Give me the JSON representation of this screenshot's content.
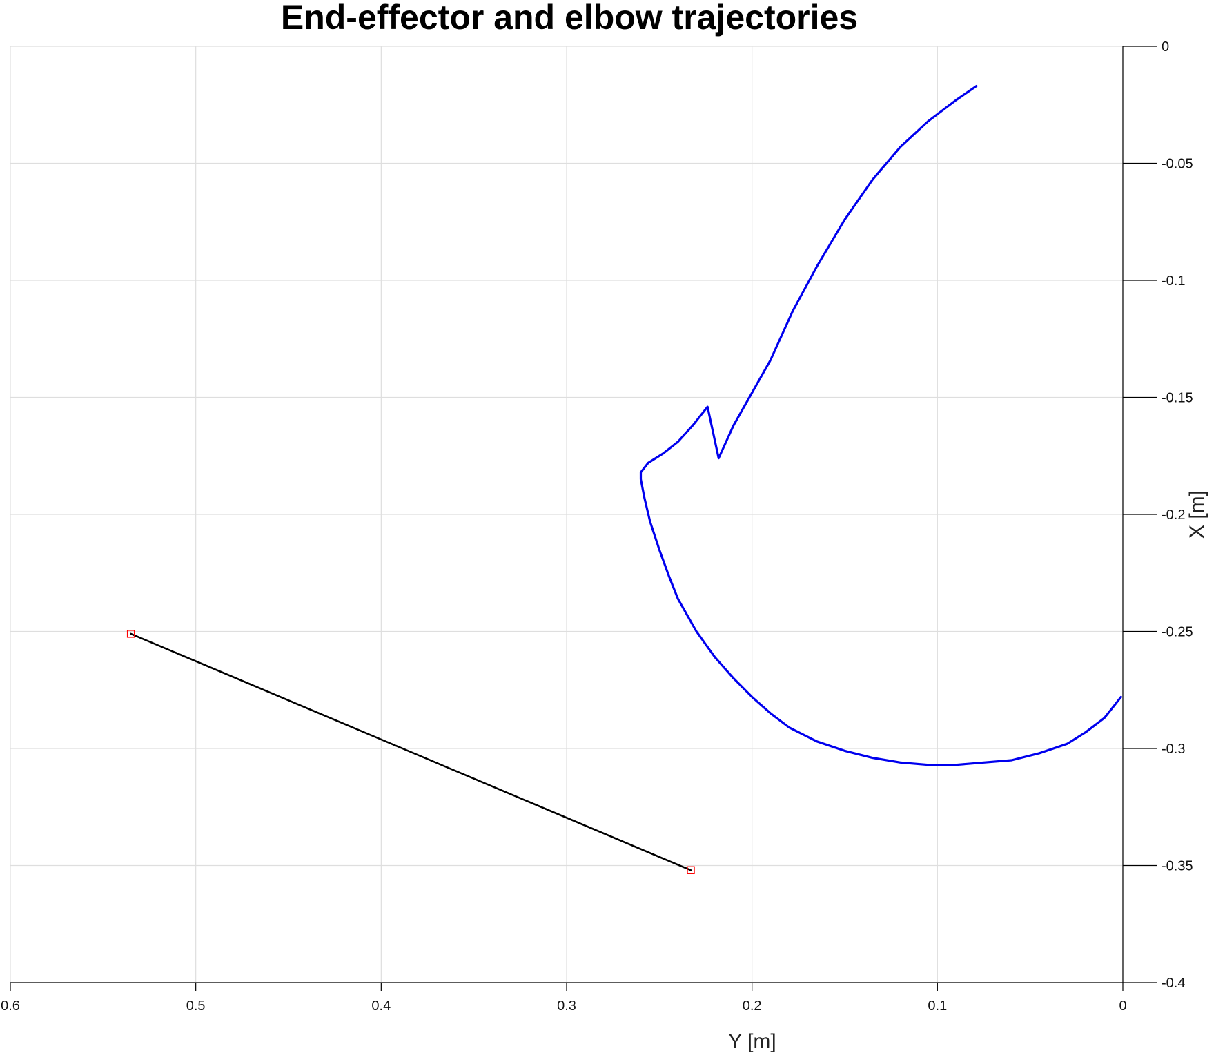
{
  "chart_data": {
    "type": "line",
    "title": "End-effector and elbow trajectories",
    "xlabel": "Y [m]",
    "ylabel": "X [m]",
    "x_reversed": true,
    "y_axis_location": "right",
    "xlim": [
      0,
      0.6
    ],
    "ylim": [
      -0.4,
      0
    ],
    "xticks": [
      0.6,
      0.5,
      0.4,
      0.3,
      0.2,
      0.1,
      0
    ],
    "yticks": [
      0,
      -0.05,
      -0.1,
      -0.15,
      -0.2,
      -0.25,
      -0.3,
      -0.35,
      -0.4
    ],
    "xtick_labels": [
      "0.6",
      "0.5",
      "0.4",
      "0.3",
      "0.2",
      "0.1",
      "0"
    ],
    "ytick_labels": [
      "0",
      "-0.05",
      "-0.1",
      "-0.15",
      "-0.2",
      "-0.25",
      "-0.3",
      "-0.35",
      "-0.4"
    ],
    "grid": true,
    "series": [
      {
        "kind": "elbow",
        "color": "#0000ee",
        "x": [
          0.079,
          0.09,
          0.105,
          0.12,
          0.135,
          0.15,
          0.165,
          0.178,
          0.19,
          0.2,
          0.21,
          0.218,
          0.224,
          0.232,
          0.24,
          0.248,
          0.256,
          0.26,
          0.26,
          0.258,
          0.255,
          0.25,
          0.245,
          0.24,
          0.23,
          0.22,
          0.21,
          0.2,
          0.19,
          0.18,
          0.165,
          0.15,
          0.135,
          0.12,
          0.105,
          0.09,
          0.075,
          0.06,
          0.045,
          0.03,
          0.02,
          0.01,
          0.005,
          0.001
        ],
        "y": [
          -0.017,
          -0.023,
          -0.032,
          -0.043,
          -0.057,
          -0.074,
          -0.094,
          -0.113,
          -0.134,
          -0.148,
          -0.162,
          -0.176,
          -0.154,
          -0.162,
          -0.169,
          -0.174,
          -0.178,
          -0.182,
          -0.185,
          -0.193,
          -0.203,
          -0.215,
          -0.226,
          -0.236,
          -0.25,
          -0.261,
          -0.27,
          -0.278,
          -0.285,
          -0.291,
          -0.297,
          -0.301,
          -0.304,
          -0.306,
          -0.307,
          -0.307,
          -0.306,
          -0.305,
          -0.302,
          -0.298,
          -0.293,
          -0.287,
          -0.282,
          -0.278
        ]
      },
      {
        "kind": "end-effector",
        "color": "#000000",
        "x": [
          0.535,
          0.233
        ],
        "y": [
          -0.251,
          -0.352
        ]
      }
    ],
    "markers": {
      "shape": "square",
      "color": "#ff0000",
      "x": [
        0.535,
        0.233
      ],
      "y": [
        -0.251,
        -0.352
      ]
    }
  }
}
